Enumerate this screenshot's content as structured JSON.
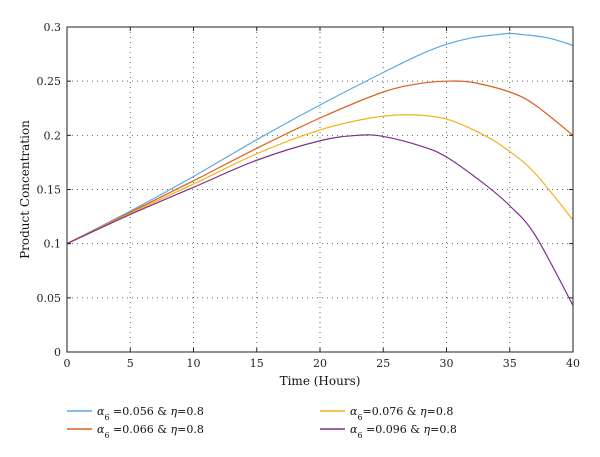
{
  "chart_data": {
    "type": "line",
    "title": "",
    "xlabel": "Time (Hours)",
    "ylabel": "Product Concentration",
    "xlim": [
      0,
      40
    ],
    "ylim": [
      0,
      0.3
    ],
    "xticks": [
      0,
      5,
      10,
      15,
      20,
      25,
      30,
      35,
      40
    ],
    "yticks": [
      0,
      0.05,
      0.1,
      0.15,
      0.2,
      0.25,
      0.3
    ],
    "xtick_labels": [
      "0",
      "5",
      "10",
      "15",
      "20",
      "25",
      "30",
      "35",
      "40"
    ],
    "ytick_labels": [
      "0",
      "0.05",
      "0.1",
      "0.15",
      "0.2",
      "0.25",
      "0.3"
    ],
    "grid": true,
    "legend_position": "bottom",
    "series": [
      {
        "name": "α6 =0.056 & η=0.8",
        "legend": {
          "symbol": "α",
          "sub": "6",
          "text": " =0.056 & ",
          "eta": "η",
          "rest": "=0.8"
        },
        "color": "#5aa9e6",
        "x": [
          0,
          5,
          10,
          15,
          20,
          25,
          28,
          30,
          32,
          34,
          35,
          36,
          38,
          40
        ],
        "y": [
          0.1,
          0.13,
          0.162,
          0.196,
          0.228,
          0.258,
          0.275,
          0.284,
          0.29,
          0.293,
          0.294,
          0.293,
          0.29,
          0.283
        ]
      },
      {
        "name": "α6 =0.066 & η=0.8",
        "legend": {
          "symbol": "α",
          "sub": "6",
          "text": " =0.066 & ",
          "eta": "η",
          "rest": "=0.8"
        },
        "color": "#d9601b",
        "x": [
          0,
          5,
          10,
          15,
          20,
          25,
          28,
          30,
          32,
          35,
          37,
          40
        ],
        "y": [
          0.1,
          0.129,
          0.158,
          0.188,
          0.216,
          0.24,
          0.248,
          0.25,
          0.249,
          0.24,
          0.228,
          0.2
        ]
      },
      {
        "name": "α6 =0.076 & η=0.8",
        "legend": {
          "symbol": "α",
          "sub": "6",
          "text": "=0.076 & ",
          "eta": "η",
          "rest": "=0.8"
        },
        "color": "#f2b21c",
        "x": [
          0,
          5,
          10,
          15,
          20,
          24,
          27,
          30,
          33,
          35,
          37,
          40
        ],
        "y": [
          0.1,
          0.128,
          0.155,
          0.183,
          0.205,
          0.216,
          0.219,
          0.215,
          0.2,
          0.185,
          0.165,
          0.122
        ]
      },
      {
        "name": "α6 =0.096 & η=0.8",
        "legend": {
          "symbol": "α",
          "sub": "6",
          "text": " =0.096 & ",
          "eta": "η",
          "rest": "=0.8"
        },
        "color": "#7e2f8e",
        "x": [
          0,
          5,
          10,
          15,
          20,
          23,
          25,
          28,
          30,
          33,
          35,
          37,
          40
        ],
        "y": [
          0.1,
          0.127,
          0.152,
          0.177,
          0.195,
          0.2,
          0.199,
          0.19,
          0.18,
          0.155,
          0.135,
          0.108,
          0.043
        ]
      }
    ]
  }
}
